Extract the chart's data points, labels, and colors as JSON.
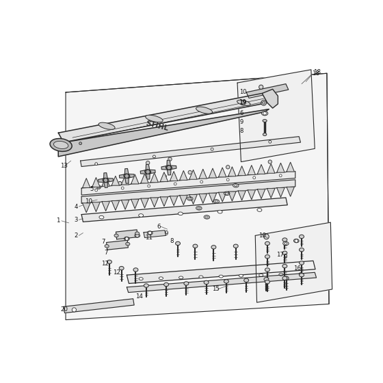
{
  "bg": "#ffffff",
  "ec": "#2a2a2a",
  "fc_panel": "#f2f2f2",
  "fc_tube": "#e8e8e8",
  "fc_blade": "#ececec",
  "fc_dark": "#d0d0d0",
  "lw_main": 1.0,
  "lw_thin": 0.65,
  "label_sz": 6.2
}
